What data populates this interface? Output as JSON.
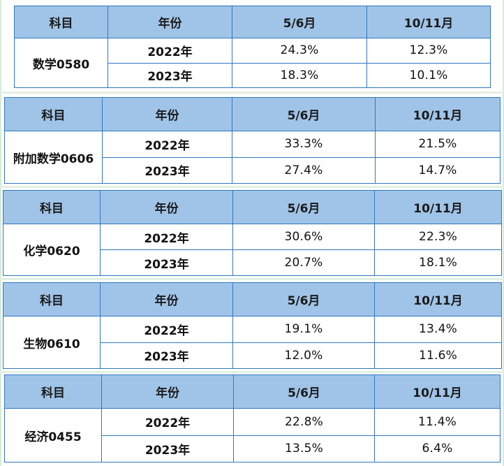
{
  "headers": {
    "subject": "科目",
    "year": "年份",
    "may_june": "5/6月",
    "oct_nov": "10/11月"
  },
  "tables": [
    {
      "subject": "数学0580",
      "rows": [
        {
          "year": "2022年",
          "may_june": "24.3%",
          "oct_nov": "12.3%"
        },
        {
          "year": "2023年",
          "may_june": "18.3%",
          "oct_nov": "10.1%"
        }
      ]
    },
    {
      "subject": "附加数学0606",
      "rows": [
        {
          "year": "2022年",
          "may_june": "33.3%",
          "oct_nov": "21.5%"
        },
        {
          "year": "2023年",
          "may_june": "27.4%",
          "oct_nov": "14.7%"
        }
      ]
    },
    {
      "subject": "化学0620",
      "rows": [
        {
          "year": "2022年",
          "may_june": "30.6%",
          "oct_nov": "22.3%"
        },
        {
          "year": "2023年",
          "may_june": "20.7%",
          "oct_nov": "18.1%"
        }
      ]
    },
    {
      "subject": "生物0610",
      "rows": [
        {
          "year": "2022年",
          "may_june": "19.1%",
          "oct_nov": "13.4%"
        },
        {
          "year": "2023年",
          "may_june": "12.0%",
          "oct_nov": "11.6%"
        }
      ]
    },
    {
      "subject": "经济0455",
      "rows": [
        {
          "year": "2022年",
          "may_june": "22.8%",
          "oct_nov": "11.4%"
        },
        {
          "year": "2023年",
          "may_june": "13.5%",
          "oct_nov": "6.4%"
        }
      ]
    }
  ]
}
